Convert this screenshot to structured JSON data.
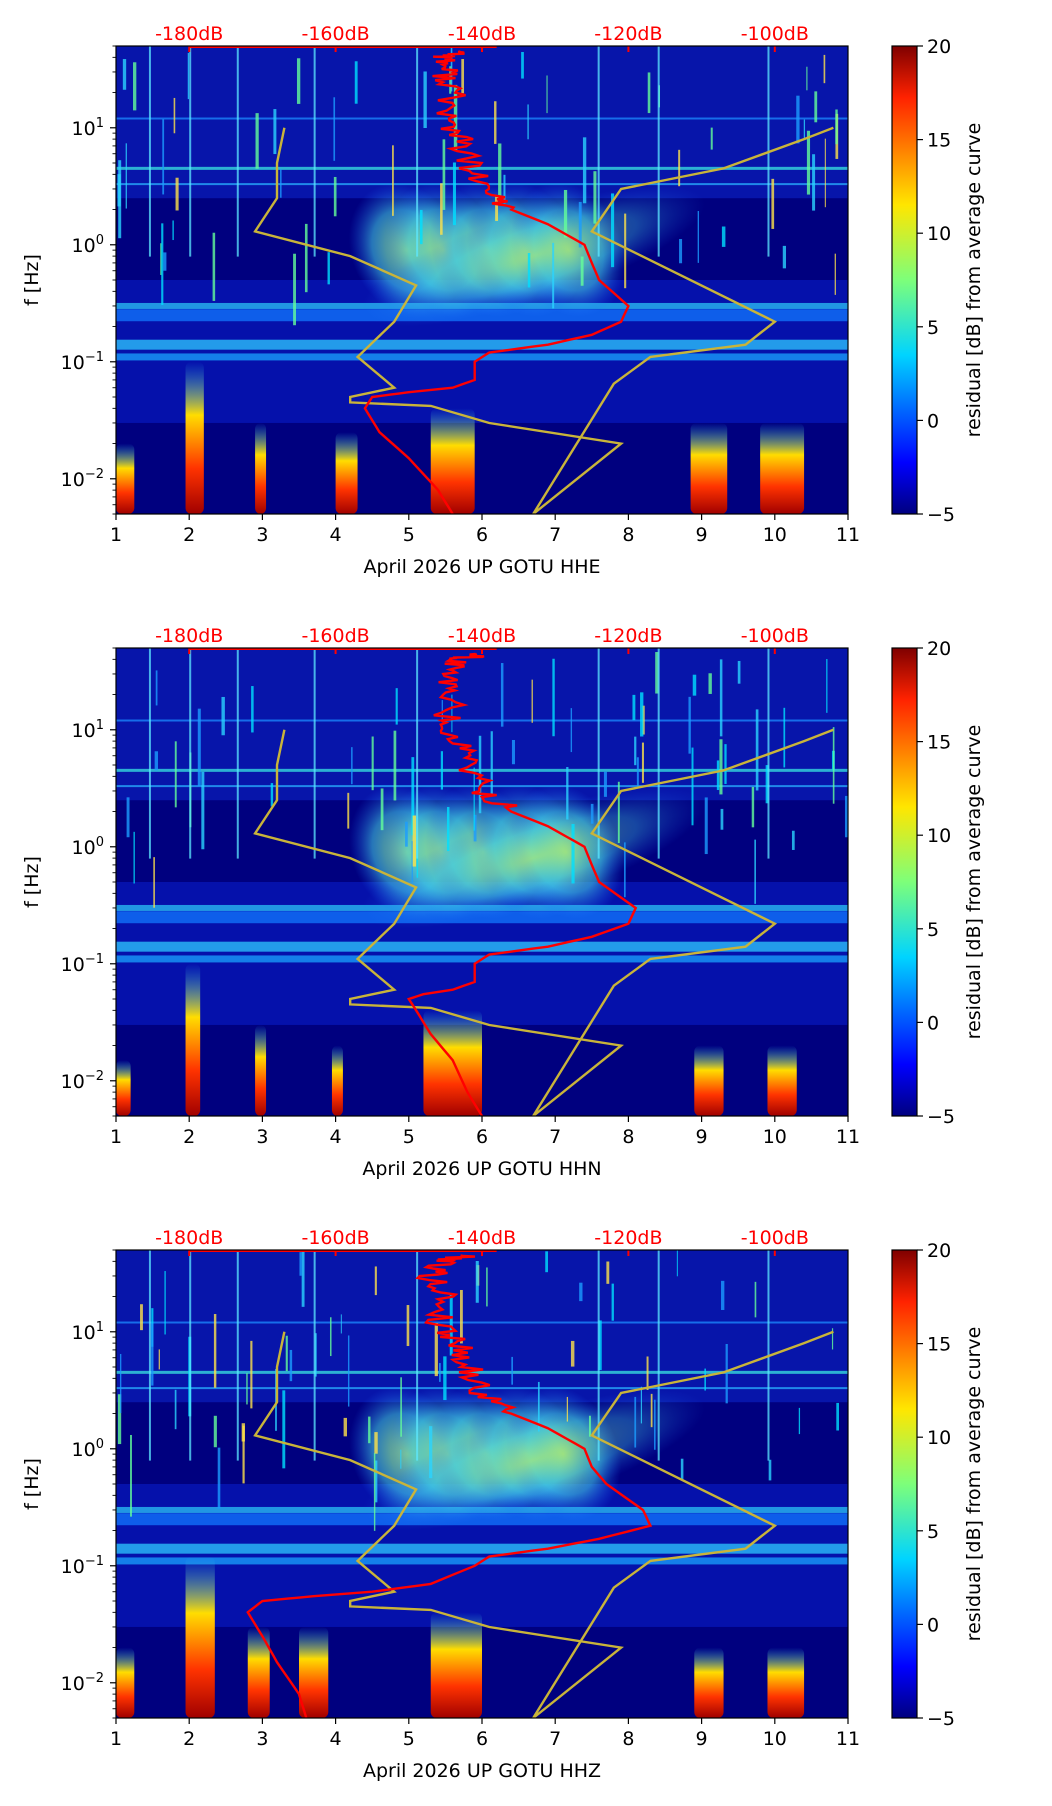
{
  "colors": {
    "noise_low": "#00007f",
    "nlnm_nhnm_curve": "#c9b43a",
    "median_curve": "#ff0000",
    "db_axis": "#ff0000"
  },
  "chart_data": [
    {
      "type": "heatmap",
      "title": "",
      "xlabel": "April 2026 UP GOTU  HHE",
      "ylabel": "f [Hz]",
      "xlim": [
        1,
        11
      ],
      "x_ticks": [
        "1",
        "2",
        "3",
        "4",
        "5",
        "6",
        "7",
        "8",
        "9",
        "10",
        "11"
      ],
      "y_scale": "log",
      "ylim": [
        0.005,
        50
      ],
      "y_ticks": [
        {
          "value": 10,
          "base": "10",
          "exp": "1"
        },
        {
          "value": 1,
          "base": "10",
          "exp": "0"
        },
        {
          "value": 0.1,
          "base": "10",
          "exp": "−1"
        },
        {
          "value": 0.01,
          "base": "10",
          "exp": "−2"
        }
      ],
      "db_axis": {
        "position": "top",
        "range": [
          -190,
          -90
        ],
        "ticks": [
          "-180dB",
          "-160dB",
          "-140dB",
          "-120dB",
          "-100dB"
        ],
        "values": [
          -180,
          -160,
          -140,
          -120,
          -100
        ]
      },
      "colorbar": {
        "label": "residual [dB] from average curve",
        "range": [
          -5,
          20
        ],
        "ticks": [
          "20",
          "15",
          "10",
          "5",
          "0",
          "−5"
        ],
        "values": [
          20,
          15,
          10,
          5,
          0,
          -5
        ]
      },
      "series": [
        {
          "name": "model_curve",
          "color": "#c9b43a",
          "points_x_dB": [
            -167,
            -168,
            -168,
            -171,
            -158,
            -149,
            -152,
            -157,
            -152,
            -158,
            -158,
            -147,
            -139,
            -121,
            -133,
            -122,
            -117,
            -104,
            -100,
            -125,
            -121,
            -107,
            -96,
            -92
          ],
          "points_f": [
            10,
            5,
            2.5,
            1.3,
            0.8,
            0.45,
            0.22,
            0.11,
            0.06,
            0.05,
            0.045,
            0.042,
            0.03,
            0.02,
            0.005,
            0.065,
            0.11,
            0.14,
            0.22,
            1.3,
            3.0,
            4.5,
            8,
            10
          ]
        },
        {
          "name": "median_curve",
          "color": "#ff0000",
          "points_dB": [
            -142,
            -145,
            -145,
            -144,
            -145,
            -143,
            -142,
            -140,
            -136,
            -131,
            -126,
            -125,
            -124,
            -120,
            -121,
            -125,
            -131,
            -139,
            -141,
            -141,
            -144,
            -150,
            -155,
            -156,
            -154,
            -150,
            -146,
            -144
          ],
          "points_f": [
            45,
            40,
            30,
            20,
            12,
            8,
            5,
            3,
            2,
            1.5,
            1.0,
            0.7,
            0.5,
            0.3,
            0.22,
            0.17,
            0.14,
            0.12,
            0.1,
            0.07,
            0.06,
            0.055,
            0.05,
            0.04,
            0.025,
            0.015,
            0.008,
            0.005
          ]
        }
      ]
    },
    {
      "type": "heatmap",
      "title": "",
      "xlabel": "April 2026 UP GOTU  HHN",
      "ylabel": "f [Hz]",
      "xlim": [
        1,
        11
      ],
      "x_ticks": [
        "1",
        "2",
        "3",
        "4",
        "5",
        "6",
        "7",
        "8",
        "9",
        "10",
        "11"
      ],
      "y_scale": "log",
      "ylim": [
        0.005,
        50
      ],
      "y_ticks": [
        {
          "value": 10,
          "base": "10",
          "exp": "1"
        },
        {
          "value": 1,
          "base": "10",
          "exp": "0"
        },
        {
          "value": 0.1,
          "base": "10",
          "exp": "−1"
        },
        {
          "value": 0.01,
          "base": "10",
          "exp": "−2"
        }
      ],
      "db_axis": {
        "position": "top",
        "range": [
          -190,
          -90
        ],
        "ticks": [
          "-180dB",
          "-160dB",
          "-140dB",
          "-120dB",
          "-100dB"
        ],
        "values": [
          -180,
          -160,
          -140,
          -120,
          -100
        ]
      },
      "colorbar": {
        "label": "residual [dB] from average curve",
        "range": [
          -5,
          20
        ],
        "ticks": [
          "20",
          "15",
          "10",
          "5",
          "0",
          "−5"
        ],
        "values": [
          20,
          15,
          10,
          5,
          0,
          -5
        ]
      },
      "series": [
        {
          "name": "model_curve",
          "color": "#c9b43a",
          "points_x_dB": [
            -167,
            -168,
            -168,
            -171,
            -158,
            -149,
            -152,
            -157,
            -152,
            -158,
            -158,
            -147,
            -139,
            -121,
            -133,
            -122,
            -117,
            -104,
            -100,
            -125,
            -121,
            -107,
            -96,
            -92
          ],
          "points_f": [
            10,
            5,
            2.5,
            1.3,
            0.8,
            0.45,
            0.22,
            0.11,
            0.06,
            0.05,
            0.045,
            0.042,
            0.03,
            0.02,
            0.005,
            0.065,
            0.11,
            0.14,
            0.22,
            1.3,
            3.0,
            4.5,
            8,
            10
          ]
        },
        {
          "name": "median_curve",
          "color": "#ff0000",
          "points_dB": [
            -140,
            -143,
            -145,
            -144,
            -145,
            -143,
            -142,
            -140,
            -136,
            -131,
            -126,
            -125,
            -124,
            -119,
            -120,
            -125,
            -131,
            -139,
            -141,
            -141,
            -144,
            -148,
            -150,
            -149,
            -147,
            -144,
            -142,
            -140
          ],
          "points_f": [
            45,
            40,
            30,
            20,
            12,
            8,
            5,
            3,
            2,
            1.5,
            1.0,
            0.7,
            0.5,
            0.3,
            0.22,
            0.17,
            0.14,
            0.12,
            0.1,
            0.07,
            0.06,
            0.055,
            0.05,
            0.04,
            0.025,
            0.015,
            0.008,
            0.005
          ]
        }
      ]
    },
    {
      "type": "heatmap",
      "title": "",
      "xlabel": "April 2026 UP GOTU  HHZ",
      "ylabel": "f [Hz]",
      "xlim": [
        1,
        11
      ],
      "x_ticks": [
        "1",
        "2",
        "3",
        "4",
        "5",
        "6",
        "7",
        "8",
        "9",
        "10",
        "11"
      ],
      "y_scale": "log",
      "ylim": [
        0.005,
        50
      ],
      "y_ticks": [
        {
          "value": 10,
          "base": "10",
          "exp": "1"
        },
        {
          "value": 1,
          "base": "10",
          "exp": "0"
        },
        {
          "value": 0.1,
          "base": "10",
          "exp": "−1"
        },
        {
          "value": 0.01,
          "base": "10",
          "exp": "−2"
        }
      ],
      "db_axis": {
        "position": "top",
        "range": [
          -190,
          -90
        ],
        "ticks": [
          "-180dB",
          "-160dB",
          "-140dB",
          "-120dB",
          "-100dB"
        ],
        "values": [
          -180,
          -160,
          -140,
          -120,
          -100
        ]
      },
      "colorbar": {
        "label": "residual [dB] from average curve",
        "range": [
          -5,
          20
        ],
        "ticks": [
          "20",
          "15",
          "10",
          "5",
          "0",
          "−5"
        ],
        "values": [
          20,
          15,
          10,
          5,
          0,
          -5
        ]
      },
      "series": [
        {
          "name": "model_curve",
          "color": "#c9b43a",
          "points_x_dB": [
            -167,
            -168,
            -168,
            -171,
            -158,
            -149,
            -152,
            -157,
            -152,
            -158,
            -158,
            -147,
            -139,
            -121,
            -133,
            -122,
            -117,
            -104,
            -100,
            -125,
            -121,
            -107,
            -96,
            -92
          ],
          "points_f": [
            10,
            5,
            2.5,
            1.3,
            0.8,
            0.45,
            0.22,
            0.11,
            0.06,
            0.05,
            0.045,
            0.042,
            0.03,
            0.02,
            0.005,
            0.065,
            0.11,
            0.14,
            0.22,
            1.3,
            3.0,
            4.5,
            8,
            10
          ]
        },
        {
          "name": "median_curve",
          "color": "#ff0000",
          "points_dB": [
            -142,
            -145,
            -147,
            -145,
            -146,
            -143,
            -142,
            -140,
            -136,
            -131,
            -126,
            -125,
            -123,
            -118,
            -117,
            -124,
            -131,
            -139,
            -141,
            -147,
            -155,
            -163,
            -170,
            -172,
            -170,
            -168,
            -165,
            -164
          ],
          "points_f": [
            45,
            40,
            30,
            20,
            12,
            8,
            5,
            3,
            2,
            1.5,
            1.0,
            0.7,
            0.5,
            0.3,
            0.22,
            0.17,
            0.14,
            0.12,
            0.1,
            0.07,
            0.06,
            0.055,
            0.05,
            0.04,
            0.025,
            0.015,
            0.008,
            0.005
          ]
        }
      ]
    }
  ]
}
